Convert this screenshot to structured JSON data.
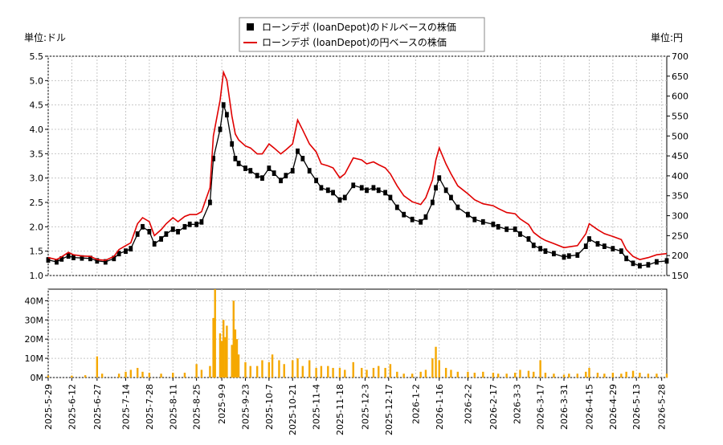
{
  "chart_data": [
    {
      "type": "candlestick+line",
      "units": {
        "left": "単位:ドル",
        "right": "単位:円"
      },
      "legend": {
        "placement": "top-center",
        "entries": [
          {
            "label": "ローンデポ (loanDepot)のドルベースの株価",
            "marker": "square",
            "color": "#000000"
          },
          {
            "label": "ローンデポ (loanDepot)の円ベースの株価",
            "marker": "line",
            "color": "#e00000"
          }
        ]
      },
      "x_range": [
        "2025-05-29",
        "2026-05-31"
      ],
      "x_tick_labels": [
        "2025-5-29",
        "2025-6-12",
        "2025-6-27",
        "2025-7-14",
        "2025-7-28",
        "2025-8-11",
        "2025-8-25",
        "2025-9-9",
        "2025-9-23",
        "2025-10-7",
        "2025-10-21",
        "2025-11-4",
        "2025-11-18",
        "2025-12-3",
        "2025-12-17",
        "2026-1-2",
        "2026-1-16",
        "2026-2-2",
        "2026-2-17",
        "2026-3-3",
        "2026-3-17",
        "2026-3-31",
        "2026-4-15",
        "2026-4-29",
        "2026-5-13",
        "2026-5-28"
      ],
      "y_left": {
        "range": [
          1.0,
          5.5
        ],
        "ticks": [
          "1.0",
          "1.5",
          "2.0",
          "2.5",
          "3.0",
          "3.5",
          "4.0",
          "4.5",
          "5.0",
          "5.5"
        ]
      },
      "y_right": {
        "range": [
          150,
          700
        ],
        "ticks": [
          "150",
          "200",
          "250",
          "300",
          "350",
          "400",
          "450",
          "500",
          "550",
          "600",
          "650",
          "700"
        ]
      },
      "grid": true,
      "usd_close_series": [
        [
          "2025-05-29",
          1.32
        ],
        [
          "2025-06-03",
          1.28
        ],
        [
          "2025-06-06",
          1.34
        ],
        [
          "2025-06-10",
          1.4
        ],
        [
          "2025-06-13",
          1.37
        ],
        [
          "2025-06-18",
          1.36
        ],
        [
          "2025-06-23",
          1.35
        ],
        [
          "2025-06-27",
          1.3
        ],
        [
          "2025-07-02",
          1.28
        ],
        [
          "2025-07-07",
          1.35
        ],
        [
          "2025-07-10",
          1.45
        ],
        [
          "2025-07-14",
          1.5
        ],
        [
          "2025-07-17",
          1.55
        ],
        [
          "2025-07-21",
          1.85
        ],
        [
          "2025-07-24",
          2.0
        ],
        [
          "2025-07-28",
          1.9
        ],
        [
          "2025-07-31",
          1.65
        ],
        [
          "2025-08-04",
          1.75
        ],
        [
          "2025-08-07",
          1.85
        ],
        [
          "2025-08-11",
          1.95
        ],
        [
          "2025-08-14",
          1.9
        ],
        [
          "2025-08-18",
          2.0
        ],
        [
          "2025-08-21",
          2.05
        ],
        [
          "2025-08-25",
          2.05
        ],
        [
          "2025-08-28",
          2.1
        ],
        [
          "2025-09-02",
          2.5
        ],
        [
          "2025-09-04",
          3.4
        ],
        [
          "2025-09-08",
          4.0
        ],
        [
          "2025-09-10",
          4.5
        ],
        [
          "2025-09-12",
          4.3
        ],
        [
          "2025-09-15",
          3.7
        ],
        [
          "2025-09-17",
          3.4
        ],
        [
          "2025-09-19",
          3.3
        ],
        [
          "2025-09-23",
          3.2
        ],
        [
          "2025-09-26",
          3.15
        ],
        [
          "2025-09-30",
          3.05
        ],
        [
          "2025-10-03",
          3.0
        ],
        [
          "2025-10-07",
          3.2
        ],
        [
          "2025-10-10",
          3.1
        ],
        [
          "2025-10-14",
          2.95
        ],
        [
          "2025-10-17",
          3.05
        ],
        [
          "2025-10-21",
          3.15
        ],
        [
          "2025-10-24",
          3.55
        ],
        [
          "2025-10-27",
          3.4
        ],
        [
          "2025-10-31",
          3.15
        ],
        [
          "2025-11-04",
          2.95
        ],
        [
          "2025-11-07",
          2.8
        ],
        [
          "2025-11-11",
          2.75
        ],
        [
          "2025-11-14",
          2.7
        ],
        [
          "2025-11-18",
          2.55
        ],
        [
          "2025-11-21",
          2.6
        ],
        [
          "2025-11-26",
          2.85
        ],
        [
          "2025-12-01",
          2.8
        ],
        [
          "2025-12-04",
          2.75
        ],
        [
          "2025-12-08",
          2.8
        ],
        [
          "2025-12-11",
          2.75
        ],
        [
          "2025-12-15",
          2.7
        ],
        [
          "2025-12-18",
          2.6
        ],
        [
          "2025-12-22",
          2.4
        ],
        [
          "2025-12-26",
          2.25
        ],
        [
          "2025-12-31",
          2.15
        ],
        [
          "2026-01-05",
          2.1
        ],
        [
          "2026-01-08",
          2.2
        ],
        [
          "2026-01-12",
          2.5
        ],
        [
          "2026-01-14",
          2.8
        ],
        [
          "2026-01-16",
          3.0
        ],
        [
          "2026-01-20",
          2.75
        ],
        [
          "2026-01-23",
          2.6
        ],
        [
          "2026-01-27",
          2.4
        ],
        [
          "2026-02-02",
          2.25
        ],
        [
          "2026-02-06",
          2.15
        ],
        [
          "2026-02-11",
          2.1
        ],
        [
          "2026-02-17",
          2.05
        ],
        [
          "2026-02-20",
          2.0
        ],
        [
          "2026-02-25",
          1.95
        ],
        [
          "2026-03-02",
          1.95
        ],
        [
          "2026-03-05",
          1.85
        ],
        [
          "2026-03-10",
          1.75
        ],
        [
          "2026-03-13",
          1.62
        ],
        [
          "2026-03-17",
          1.55
        ],
        [
          "2026-03-20",
          1.5
        ],
        [
          "2026-03-25",
          1.45
        ],
        [
          "2026-03-31",
          1.38
        ],
        [
          "2026-04-03",
          1.4
        ],
        [
          "2026-04-08",
          1.42
        ],
        [
          "2026-04-13",
          1.6
        ],
        [
          "2026-04-15",
          1.75
        ],
        [
          "2026-04-20",
          1.65
        ],
        [
          "2026-04-24",
          1.6
        ],
        [
          "2026-04-29",
          1.55
        ],
        [
          "2026-05-04",
          1.5
        ],
        [
          "2026-05-07",
          1.35
        ],
        [
          "2026-05-11",
          1.25
        ],
        [
          "2026-05-15",
          1.2
        ],
        [
          "2026-05-20",
          1.22
        ],
        [
          "2026-05-25",
          1.28
        ],
        [
          "2026-05-31",
          1.3
        ]
      ],
      "jpy_close_series": [
        [
          "2025-05-29",
          195
        ],
        [
          "2025-06-03",
          190
        ],
        [
          "2025-06-06",
          197
        ],
        [
          "2025-06-10",
          208
        ],
        [
          "2025-06-13",
          202
        ],
        [
          "2025-06-18",
          199
        ],
        [
          "2025-06-23",
          198
        ],
        [
          "2025-06-27",
          190
        ],
        [
          "2025-07-02",
          188
        ],
        [
          "2025-07-07",
          198
        ],
        [
          "2025-07-10",
          215
        ],
        [
          "2025-07-14",
          225
        ],
        [
          "2025-07-17",
          232
        ],
        [
          "2025-07-21",
          280
        ],
        [
          "2025-07-24",
          295
        ],
        [
          "2025-07-28",
          285
        ],
        [
          "2025-07-31",
          250
        ],
        [
          "2025-08-04",
          265
        ],
        [
          "2025-08-07",
          280
        ],
        [
          "2025-08-11",
          295
        ],
        [
          "2025-08-14",
          285
        ],
        [
          "2025-08-18",
          298
        ],
        [
          "2025-08-21",
          303
        ],
        [
          "2025-08-25",
          303
        ],
        [
          "2025-08-28",
          310
        ],
        [
          "2025-09-02",
          370
        ],
        [
          "2025-09-04",
          500
        ],
        [
          "2025-09-08",
          590
        ],
        [
          "2025-09-10",
          660
        ],
        [
          "2025-09-12",
          640
        ],
        [
          "2025-09-15",
          550
        ],
        [
          "2025-09-17",
          505
        ],
        [
          "2025-09-19",
          490
        ],
        [
          "2025-09-23",
          475
        ],
        [
          "2025-09-26",
          470
        ],
        [
          "2025-09-30",
          455
        ],
        [
          "2025-10-03",
          455
        ],
        [
          "2025-10-07",
          480
        ],
        [
          "2025-10-10",
          470
        ],
        [
          "2025-10-14",
          455
        ],
        [
          "2025-10-17",
          465
        ],
        [
          "2025-10-21",
          480
        ],
        [
          "2025-10-24",
          540
        ],
        [
          "2025-10-27",
          515
        ],
        [
          "2025-10-31",
          480
        ],
        [
          "2025-11-04",
          460
        ],
        [
          "2025-11-07",
          430
        ],
        [
          "2025-11-11",
          425
        ],
        [
          "2025-11-14",
          420
        ],
        [
          "2025-11-18",
          395
        ],
        [
          "2025-11-21",
          405
        ],
        [
          "2025-11-26",
          445
        ],
        [
          "2025-12-01",
          440
        ],
        [
          "2025-12-04",
          430
        ],
        [
          "2025-12-08",
          435
        ],
        [
          "2025-12-11",
          428
        ],
        [
          "2025-12-15",
          420
        ],
        [
          "2025-12-18",
          405
        ],
        [
          "2025-12-22",
          375
        ],
        [
          "2025-12-26",
          350
        ],
        [
          "2025-12-31",
          335
        ],
        [
          "2026-01-05",
          328
        ],
        [
          "2026-01-08",
          345
        ],
        [
          "2026-01-12",
          390
        ],
        [
          "2026-01-14",
          440
        ],
        [
          "2026-01-16",
          470
        ],
        [
          "2026-01-20",
          430
        ],
        [
          "2026-01-23",
          405
        ],
        [
          "2026-01-27",
          375
        ],
        [
          "2026-02-02",
          355
        ],
        [
          "2026-02-06",
          340
        ],
        [
          "2026-02-11",
          330
        ],
        [
          "2026-02-17",
          325
        ],
        [
          "2026-02-20",
          318
        ],
        [
          "2026-02-25",
          308
        ],
        [
          "2026-03-02",
          305
        ],
        [
          "2026-03-05",
          292
        ],
        [
          "2026-03-10",
          278
        ],
        [
          "2026-03-13",
          258
        ],
        [
          "2026-03-17",
          245
        ],
        [
          "2026-03-20",
          238
        ],
        [
          "2026-03-25",
          230
        ],
        [
          "2026-03-31",
          220
        ],
        [
          "2026-04-03",
          222
        ],
        [
          "2026-04-08",
          225
        ],
        [
          "2026-04-13",
          255
        ],
        [
          "2026-04-15",
          280
        ],
        [
          "2026-04-20",
          265
        ],
        [
          "2026-04-24",
          255
        ],
        [
          "2026-04-29",
          248
        ],
        [
          "2026-05-04",
          240
        ],
        [
          "2026-05-07",
          215
        ],
        [
          "2026-05-11",
          198
        ],
        [
          "2026-05-15",
          190
        ],
        [
          "2026-05-20",
          195
        ],
        [
          "2026-05-25",
          202
        ],
        [
          "2026-05-31",
          205
        ]
      ]
    },
    {
      "type": "bar",
      "series_label": "volume",
      "y_range": [
        0,
        46000000
      ],
      "y_ticks": [
        "0M",
        "10M",
        "20M",
        "30M",
        "40M"
      ],
      "bar_color": "#f5a800",
      "volume_series": [
        [
          "2025-05-29",
          1000000
        ],
        [
          "2025-06-12",
          1000000
        ],
        [
          "2025-06-20",
          1200000
        ],
        [
          "2025-06-27",
          11000000
        ],
        [
          "2025-06-30",
          2000000
        ],
        [
          "2025-07-10",
          2000000
        ],
        [
          "2025-07-14",
          3000000
        ],
        [
          "2025-07-17",
          4000000
        ],
        [
          "2025-07-21",
          5000000
        ],
        [
          "2025-07-24",
          3000000
        ],
        [
          "2025-07-28",
          2500000
        ],
        [
          "2025-08-04",
          2000000
        ],
        [
          "2025-08-11",
          2500000
        ],
        [
          "2025-08-18",
          2500000
        ],
        [
          "2025-08-25",
          7000000
        ],
        [
          "2025-08-28",
          4000000
        ],
        [
          "2025-09-02",
          6000000
        ],
        [
          "2025-09-04",
          31000000
        ],
        [
          "2025-09-05",
          46000000
        ],
        [
          "2025-09-08",
          23000000
        ],
        [
          "2025-09-09",
          19000000
        ],
        [
          "2025-09-10",
          30000000
        ],
        [
          "2025-09-11",
          21000000
        ],
        [
          "2025-09-12",
          27000000
        ],
        [
          "2025-09-15",
          17000000
        ],
        [
          "2025-09-16",
          40000000
        ],
        [
          "2025-09-17",
          25000000
        ],
        [
          "2025-09-18",
          20000000
        ],
        [
          "2025-09-19",
          12000000
        ],
        [
          "2025-09-23",
          8000000
        ],
        [
          "2025-09-26",
          6000000
        ],
        [
          "2025-09-30",
          6000000
        ],
        [
          "2025-10-03",
          9000000
        ],
        [
          "2025-10-07",
          8000000
        ],
        [
          "2025-10-09",
          12000000
        ],
        [
          "2025-10-13",
          9000000
        ],
        [
          "2025-10-16",
          7000000
        ],
        [
          "2025-10-21",
          9000000
        ],
        [
          "2025-10-24",
          10000000
        ],
        [
          "2025-10-27",
          6000000
        ],
        [
          "2025-10-31",
          9000000
        ],
        [
          "2025-11-04",
          5000000
        ],
        [
          "2025-11-07",
          6000000
        ],
        [
          "2025-11-11",
          6000000
        ],
        [
          "2025-11-14",
          5000000
        ],
        [
          "2025-11-18",
          5000000
        ],
        [
          "2025-11-21",
          4000000
        ],
        [
          "2025-11-26",
          8000000
        ],
        [
          "2025-12-01",
          5000000
        ],
        [
          "2025-12-04",
          4000000
        ],
        [
          "2025-12-08",
          5000000
        ],
        [
          "2025-12-11",
          6000000
        ],
        [
          "2025-12-15",
          5000000
        ],
        [
          "2025-12-18",
          7000000
        ],
        [
          "2025-12-22",
          3000000
        ],
        [
          "2025-12-26",
          2000000
        ],
        [
          "2025-12-31",
          2000000
        ],
        [
          "2026-01-05",
          3000000
        ],
        [
          "2026-01-08",
          4000000
        ],
        [
          "2026-01-12",
          10000000
        ],
        [
          "2026-01-14",
          16000000
        ],
        [
          "2026-01-16",
          9000000
        ],
        [
          "2026-01-20",
          5000000
        ],
        [
          "2026-01-23",
          4000000
        ],
        [
          "2026-01-27",
          3000000
        ],
        [
          "2026-02-02",
          3000000
        ],
        [
          "2026-02-06",
          2500000
        ],
        [
          "2026-02-11",
          3000000
        ],
        [
          "2026-02-17",
          2500000
        ],
        [
          "2026-02-20",
          2000000
        ],
        [
          "2026-02-25",
          2000000
        ],
        [
          "2026-03-02",
          2500000
        ],
        [
          "2026-03-05",
          4000000
        ],
        [
          "2026-03-10",
          3500000
        ],
        [
          "2026-03-13",
          3000000
        ],
        [
          "2026-03-17",
          9000000
        ],
        [
          "2026-03-20",
          2500000
        ],
        [
          "2026-03-25",
          2000000
        ],
        [
          "2026-03-31",
          1500000
        ],
        [
          "2026-04-03",
          2000000
        ],
        [
          "2026-04-08",
          2000000
        ],
        [
          "2026-04-13",
          3000000
        ],
        [
          "2026-04-15",
          5000000
        ],
        [
          "2026-04-20",
          2500000
        ],
        [
          "2026-04-24",
          2000000
        ],
        [
          "2026-04-29",
          2500000
        ],
        [
          "2026-05-04",
          2000000
        ],
        [
          "2026-05-07",
          3000000
        ],
        [
          "2026-05-11",
          3500000
        ],
        [
          "2026-05-15",
          2500000
        ],
        [
          "2026-05-20",
          2000000
        ],
        [
          "2026-05-25",
          2000000
        ],
        [
          "2026-05-31",
          2000000
        ]
      ]
    }
  ]
}
